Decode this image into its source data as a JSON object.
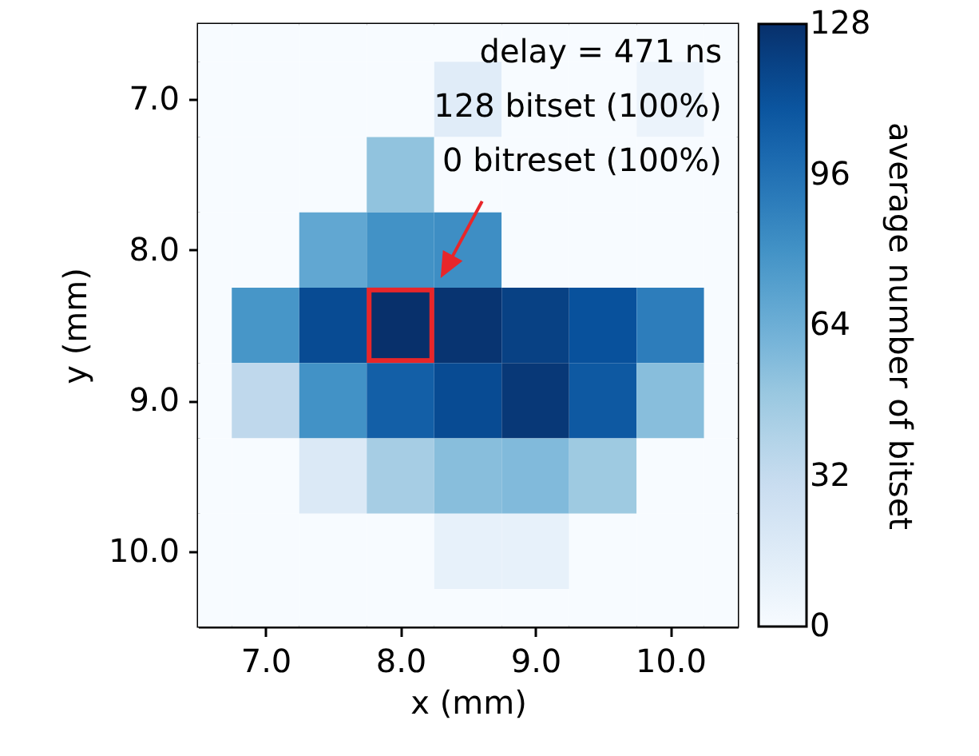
{
  "chart_data": {
    "type": "heatmap",
    "xlabel": "x (mm)",
    "ylabel": "y (mm)",
    "clabel": "average number of bitset",
    "x": [
      6.5,
      7.0,
      7.5,
      8.0,
      8.5,
      9.0,
      9.5,
      10.0,
      10.5
    ],
    "y": [
      6.5,
      7.0,
      7.5,
      8.0,
      8.5,
      9.0,
      9.5,
      10.0,
      10.5
    ],
    "cells": [
      [
        0,
        0,
        0,
        0,
        0,
        0,
        0,
        0,
        0
      ],
      [
        0,
        0,
        0,
        0,
        15,
        0,
        0,
        8,
        0
      ],
      [
        0,
        0,
        0,
        52,
        0,
        0,
        0,
        0,
        0
      ],
      [
        0,
        0,
        68,
        80,
        82,
        0,
        0,
        0,
        0
      ],
      [
        0,
        78,
        115,
        128,
        126,
        120,
        112,
        90,
        0
      ],
      [
        0,
        35,
        80,
        105,
        115,
        124,
        108,
        55,
        0
      ],
      [
        0,
        0,
        18,
        45,
        55,
        57,
        48,
        0,
        0
      ],
      [
        0,
        0,
        0,
        0,
        10,
        10,
        0,
        0,
        0
      ],
      [
        0,
        0,
        0,
        0,
        0,
        0,
        0,
        0,
        0
      ]
    ],
    "xlim": [
      6.5,
      10.5
    ],
    "xticks": [
      {
        "value": 7,
        "label": "7.0"
      },
      {
        "value": 8,
        "label": "8.0"
      },
      {
        "value": 9,
        "label": "9.0"
      },
      {
        "value": 10,
        "label": "10.0"
      }
    ],
    "ylim": [
      10.5,
      6.5
    ],
    "yticks": [
      {
        "value": 7,
        "label": "7.0"
      },
      {
        "value": 8,
        "label": "8.0"
      },
      {
        "value": 9,
        "label": "9.0"
      },
      {
        "value": 10,
        "label": "10.0"
      }
    ],
    "clim": [
      0,
      128
    ],
    "cticks": [
      0,
      32,
      64,
      96,
      128
    ],
    "annotations": [
      "delay = 471 ns",
      "128 bitset (100%)",
      "0 bitreset (100%)"
    ]
  }
}
